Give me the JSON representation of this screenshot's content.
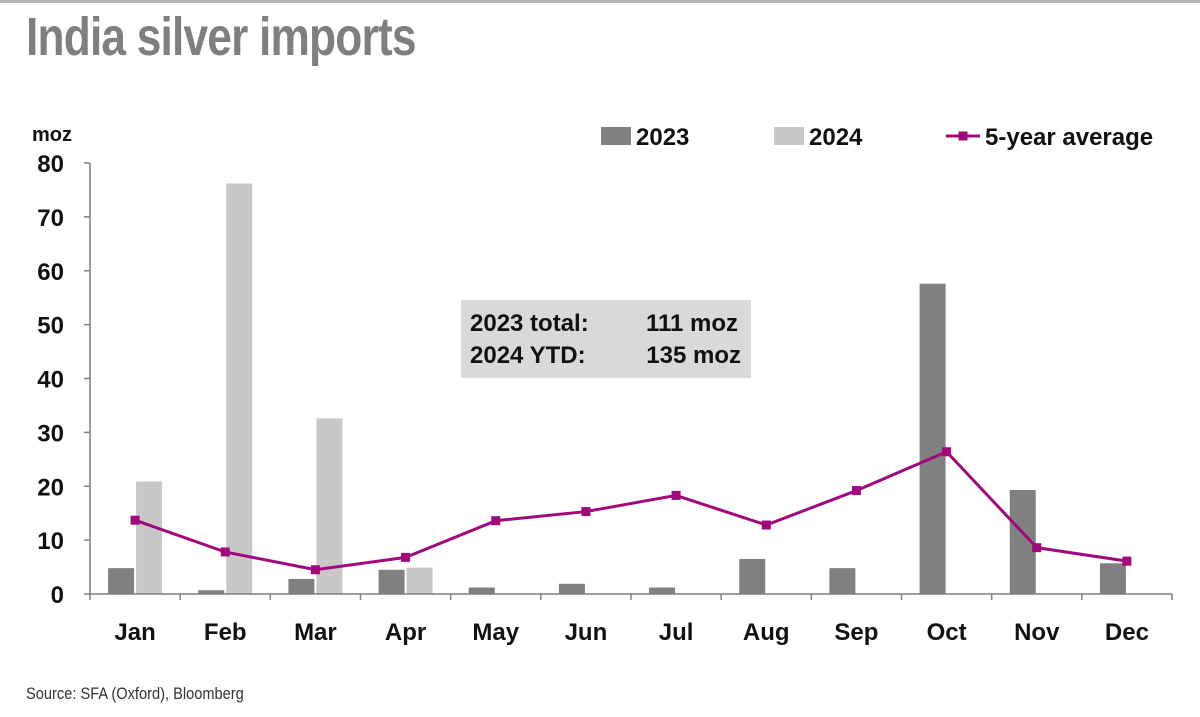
{
  "title": "India silver imports",
  "source": "Source: SFA (Oxford), Bloomberg",
  "colors": {
    "series_2023": "#808080",
    "series_2024": "#c8c8c8",
    "series_avg": "#a0087c",
    "annotation_bg": "#d9d9d9",
    "title": "#7f7f7f"
  },
  "chart_data": {
    "type": "bar",
    "ylabel": "moz",
    "ylim": [
      0,
      80
    ],
    "yticks": [
      0,
      10,
      20,
      30,
      40,
      50,
      60,
      70,
      80
    ],
    "grid": false,
    "legend_position": "top",
    "categories": [
      "Jan",
      "Feb",
      "Mar",
      "Apr",
      "May",
      "Jun",
      "Jul",
      "Aug",
      "Sep",
      "Oct",
      "Nov",
      "Dec"
    ],
    "series": [
      {
        "name": "2023",
        "kind": "bar",
        "values": [
          4.8,
          0.7,
          2.8,
          4.5,
          1.2,
          1.9,
          1.2,
          6.5,
          4.8,
          57.6,
          19.3,
          5.7
        ]
      },
      {
        "name": "2024",
        "kind": "bar",
        "values": [
          20.9,
          76.2,
          32.6,
          4.9,
          null,
          null,
          null,
          null,
          null,
          null,
          null,
          null
        ]
      },
      {
        "name": "5-year average",
        "kind": "line",
        "values": [
          13.7,
          7.8,
          4.5,
          6.8,
          13.6,
          15.3,
          18.3,
          12.8,
          19.2,
          26.4,
          8.6,
          6.1
        ]
      }
    ],
    "annotation": {
      "lines": [
        {
          "label": "2023 total:",
          "value": "111 moz"
        },
        {
          "label": "2024 YTD:",
          "value": "135 moz"
        }
      ]
    }
  }
}
